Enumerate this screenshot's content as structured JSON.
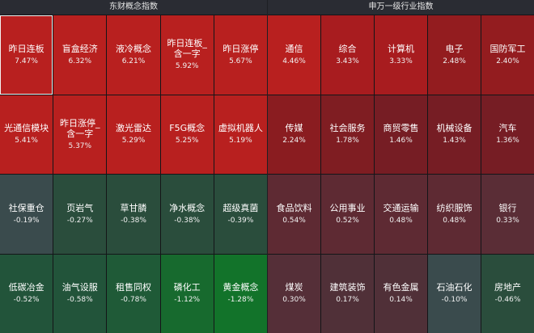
{
  "left_panel": {
    "title": "东财概念指数",
    "tiles": [
      {
        "name": "昨日连板",
        "pct": "7.47%",
        "color": "#b8201f",
        "selected": true
      },
      {
        "name": "盲盒经济",
        "pct": "6.32%",
        "color": "#b8201f"
      },
      {
        "name": "液冷概念",
        "pct": "6.21%",
        "color": "#b8201f"
      },
      {
        "name": "昨日连板_含一字",
        "pct": "5.92%",
        "color": "#b8201f"
      },
      {
        "name": "昨日涨停",
        "pct": "5.67%",
        "color": "#b8201f"
      },
      {
        "name": "光通信模块",
        "pct": "5.41%",
        "color": "#b8201f"
      },
      {
        "name": "昨日涨停_含一字",
        "pct": "5.37%",
        "color": "#b8201f"
      },
      {
        "name": "激光雷达",
        "pct": "5.29%",
        "color": "#b8201f"
      },
      {
        "name": "F5G概念",
        "pct": "5.25%",
        "color": "#b8201f"
      },
      {
        "name": "虚拟机器人",
        "pct": "5.19%",
        "color": "#b8201f"
      },
      {
        "name": "社保重仓",
        "pct": "-0.19%",
        "color": "#3a4b4d"
      },
      {
        "name": "页岩气",
        "pct": "-0.27%",
        "color": "#2a4d3c"
      },
      {
        "name": "草甘膦",
        "pct": "-0.38%",
        "color": "#2a4d3c"
      },
      {
        "name": "净水概念",
        "pct": "-0.38%",
        "color": "#2a4d3c"
      },
      {
        "name": "超级真菌",
        "pct": "-0.39%",
        "color": "#2a4d3c"
      },
      {
        "name": "低碳冶金",
        "pct": "-0.52%",
        "color": "#22543a"
      },
      {
        "name": "油气设服",
        "pct": "-0.58%",
        "color": "#22543a"
      },
      {
        "name": "租售同权",
        "pct": "-0.78%",
        "color": "#1f5a37"
      },
      {
        "name": "磷化工",
        "pct": "-1.12%",
        "color": "#176a2e"
      },
      {
        "name": "黄金概念",
        "pct": "-1.28%",
        "color": "#12732a"
      }
    ]
  },
  "right_panel": {
    "title": "申万一级行业指数",
    "tiles": [
      {
        "name": "通信",
        "pct": "4.46%",
        "color": "#b8201f"
      },
      {
        "name": "综合",
        "pct": "3.43%",
        "color": "#a81c1f"
      },
      {
        "name": "计算机",
        "pct": "3.33%",
        "color": "#a81c1f"
      },
      {
        "name": "电子",
        "pct": "2.48%",
        "color": "#931c1f"
      },
      {
        "name": "国防军工",
        "pct": "2.40%",
        "color": "#931c1f"
      },
      {
        "name": "传媒",
        "pct": "2.24%",
        "color": "#8a1c20"
      },
      {
        "name": "社会服务",
        "pct": "1.78%",
        "color": "#7f1d22"
      },
      {
        "name": "商贸零售",
        "pct": "1.46%",
        "color": "#761d24"
      },
      {
        "name": "机械设备",
        "pct": "1.43%",
        "color": "#761d24"
      },
      {
        "name": "汽车",
        "pct": "1.36%",
        "color": "#761d24"
      },
      {
        "name": "食品饮料",
        "pct": "0.54%",
        "color": "#5e2a33"
      },
      {
        "name": "公用事业",
        "pct": "0.52%",
        "color": "#5e2a33"
      },
      {
        "name": "交通运输",
        "pct": "0.48%",
        "color": "#5e2a33"
      },
      {
        "name": "纺织服饰",
        "pct": "0.48%",
        "color": "#5e2a33"
      },
      {
        "name": "银行",
        "pct": "0.33%",
        "color": "#5a2d36"
      },
      {
        "name": "煤炭",
        "pct": "0.30%",
        "color": "#552f38"
      },
      {
        "name": "建筑装饰",
        "pct": "0.17%",
        "color": "#503038"
      },
      {
        "name": "有色金属",
        "pct": "0.14%",
        "color": "#503038"
      },
      {
        "name": "石油石化",
        "pct": "-0.10%",
        "color": "#3a4b4d"
      },
      {
        "name": "房地产",
        "pct": "-0.46%",
        "color": "#2a4d3c"
      }
    ]
  }
}
